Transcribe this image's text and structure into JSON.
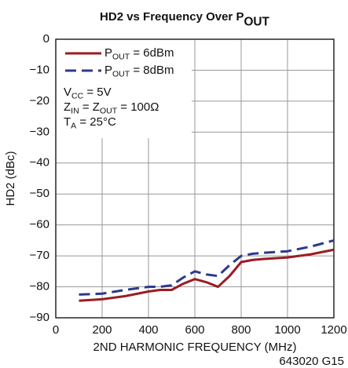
{
  "chart_data": {
    "type": "line",
    "title": [
      "HD2 vs Frequency Over P",
      "OUT"
    ],
    "x_label": "2ND HARMONIC FREQUENCY (MHz)",
    "y_label": "HD2 (dBc)",
    "footnote": "643020 G15",
    "annotations": [
      [
        "V",
        "CC",
        " = 5V"
      ],
      [
        "Z",
        "IN",
        " = Z",
        "OUT",
        " = 100Ω"
      ],
      [
        "T",
        "A",
        " = 25°C"
      ]
    ],
    "x": [
      100,
      200,
      300,
      400,
      450,
      500,
      550,
      600,
      650,
      700,
      750,
      800,
      850,
      900,
      1000,
      1100,
      1200
    ],
    "series": [
      {
        "name": [
          "P",
          "OUT",
          " = 6dBm"
        ],
        "color": "#9b1c22",
        "dashed": false,
        "values": [
          -84.5,
          -84,
          -83,
          -81.5,
          -81,
          -81,
          -79,
          -77.5,
          -78.5,
          -80,
          -76.5,
          -72,
          -71.3,
          -71,
          -70.5,
          -69.5,
          -68
        ]
      },
      {
        "name": [
          "P",
          "OUT",
          " = 8dBm"
        ],
        "color": "#2b3a8c",
        "dashed": true,
        "values": [
          -82.5,
          -82.2,
          -81,
          -80,
          -80,
          -79.5,
          -77,
          -75,
          -76,
          -76.5,
          -73,
          -70,
          -69.3,
          -69,
          -68.5,
          -67,
          -65
        ]
      }
    ],
    "xlim": [
      0,
      1200
    ],
    "xticks": [
      0,
      200,
      400,
      600,
      800,
      1000,
      1200
    ],
    "ylim": [
      -90,
      0
    ],
    "yticks": [
      0,
      {
        "value": -10,
        "label": "−10"
      },
      {
        "value": -20,
        "label": "−20"
      },
      {
        "value": -30,
        "label": "−30"
      },
      {
        "value": -40,
        "label": "−40"
      },
      {
        "value": -50,
        "label": "−50"
      },
      {
        "value": -60,
        "label": "−60"
      },
      {
        "value": -70,
        "label": "−70"
      },
      {
        "value": -80,
        "label": "−80"
      },
      {
        "value": -90,
        "label": "−90"
      }
    ],
    "grid": true
  }
}
